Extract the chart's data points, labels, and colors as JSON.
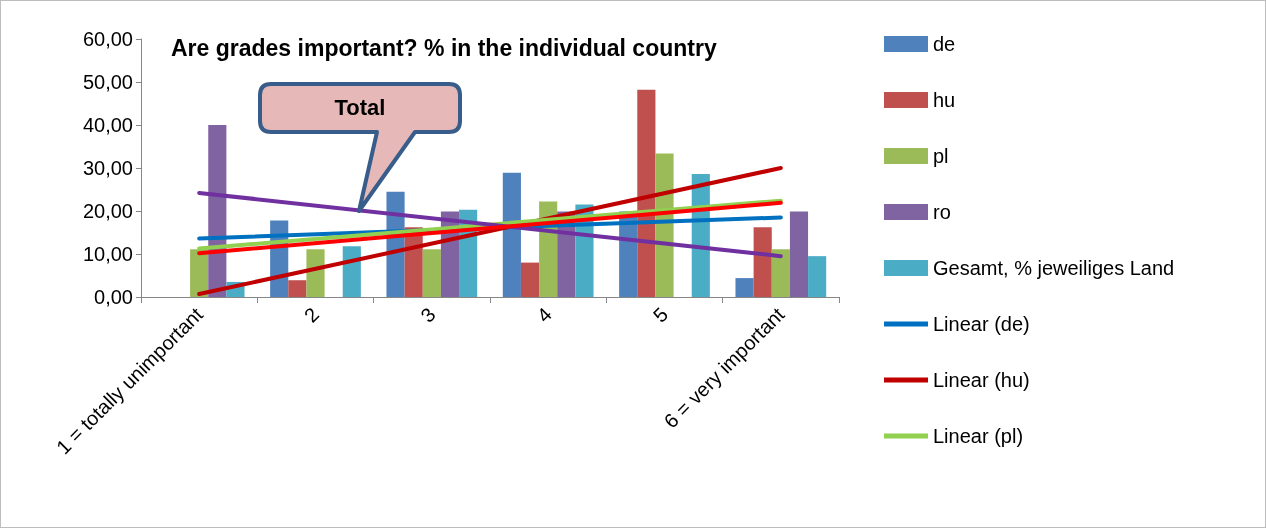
{
  "chart_data": {
    "type": "bar",
    "title": "Are grades important? % in the individual country",
    "categories": [
      "1 = totally unimportant",
      "2",
      "3",
      "4",
      "5",
      "6 = very important"
    ],
    "series": [
      {
        "name": "de",
        "type": "bar",
        "color": "#4f81bd",
        "values": [
          0,
          17.8,
          24.5,
          28.9,
          19.9,
          4.4
        ]
      },
      {
        "name": "hu",
        "type": "bar",
        "color": "#c0504d",
        "values": [
          0,
          3.9,
          16.2,
          8.0,
          48.2,
          16.2
        ]
      },
      {
        "name": "pl",
        "type": "bar",
        "color": "#9bbb59",
        "values": [
          11.1,
          11.1,
          11.1,
          22.2,
          33.4,
          11.1
        ]
      },
      {
        "name": "ro",
        "type": "bar",
        "color": "#8064a2",
        "values": [
          40.0,
          0,
          19.9,
          19.9,
          0,
          19.9
        ]
      },
      {
        "name": "Gesamt, % jeweiliges Land",
        "type": "bar",
        "color": "#4bacc6",
        "values": [
          3.5,
          11.8,
          20.3,
          21.5,
          28.6,
          9.5
        ]
      },
      {
        "name": "Linear (de)",
        "type": "line",
        "color": "#0070c0",
        "x": [
          "1 = totally unimportant",
          "6 = very important"
        ],
        "values": [
          13.6,
          18.5
        ]
      },
      {
        "name": "Linear (hu)",
        "type": "line",
        "color": "#c00000",
        "x": [
          "1 = totally unimportant",
          "6 = very important"
        ],
        "values": [
          0.7,
          30.0
        ]
      },
      {
        "name": "Linear (pl)",
        "type": "line",
        "color": "#92d050",
        "x": [
          "1 = totally unimportant",
          "6 = very important"
        ],
        "values": [
          11.3,
          22.4
        ]
      },
      {
        "type": "line",
        "color": "#7030a0",
        "x": [
          "1 = totally unimportant",
          "6 = very important"
        ],
        "values": [
          24.2,
          9.5
        ]
      },
      {
        "type": "line",
        "color": "#ff0000",
        "x": [
          "1 = totally unimportant",
          "6 = very important"
        ],
        "values": [
          10.2,
          21.9
        ]
      }
    ],
    "ylim": [
      0,
      60
    ],
    "yticks": [
      {
        "value": 0,
        "label": "0,00"
      },
      {
        "value": 10,
        "label": "10,00"
      },
      {
        "value": 20,
        "label": "20,00"
      },
      {
        "value": 30,
        "label": "30,00"
      },
      {
        "value": 40,
        "label": "40,00"
      },
      {
        "value": 50,
        "label": "50,00"
      },
      {
        "value": 60,
        "label": "60,00"
      }
    ],
    "annotations": [
      "Total"
    ],
    "marker": "none",
    "grid": false,
    "legend": "right"
  }
}
